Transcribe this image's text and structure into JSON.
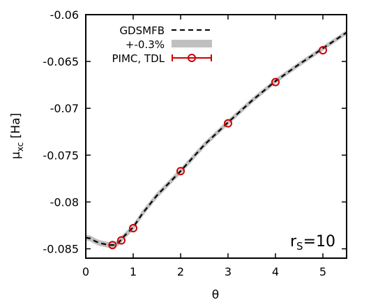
{
  "chart_data": {
    "type": "line",
    "xlabel": "θ",
    "ylabel": {
      "main": "μ",
      "sub": "xc",
      "unit": " [Ha]"
    },
    "xlim": [
      0,
      5.5
    ],
    "ylim": [
      -0.086,
      -0.06
    ],
    "xticks": [
      0,
      1,
      2,
      3,
      4,
      5
    ],
    "xtick_labels": [
      "0",
      "1",
      "2",
      "3",
      "4",
      "5"
    ],
    "yticks": [
      -0.085,
      -0.08,
      -0.075,
      -0.07,
      -0.065,
      -0.06
    ],
    "ytick_labels": [
      "-0.085",
      "-0.08",
      "-0.075",
      "-0.07",
      "-0.065",
      "-0.06"
    ],
    "annotation": {
      "main": "r",
      "sub": "S",
      "rest": "=10"
    },
    "legend_position": "top-left",
    "series": [
      {
        "name": "GDSMFB",
        "style": "dashed",
        "color": "#000000",
        "x": [
          0,
          0.1,
          0.2,
          0.3,
          0.4,
          0.5,
          0.6,
          0.7,
          0.8,
          0.9,
          1.0,
          1.2,
          1.5,
          2.0,
          2.5,
          3.0,
          3.5,
          4.0,
          4.5,
          5.0,
          5.5
        ],
        "y": [
          -0.0838,
          -0.0839,
          -0.0842,
          -0.0844,
          -0.0845,
          -0.0846,
          -0.0846,
          -0.0843,
          -0.0837,
          -0.0832,
          -0.0827,
          -0.0812,
          -0.0793,
          -0.0767,
          -0.0739,
          -0.0715,
          -0.0692,
          -0.0671,
          -0.0653,
          -0.0636,
          -0.0619
        ]
      },
      {
        "name": "+-0.3%",
        "style": "band",
        "color": "#c0c0c0",
        "relative_width": 0.003
      },
      {
        "name": "PIMC, TDL",
        "style": "points-errorbars",
        "color": "#cc0000",
        "x": [
          0.5625,
          0.75,
          1.0,
          2.0,
          3.0,
          4.0,
          5.0
        ],
        "y": [
          -0.0846,
          -0.0841,
          -0.0828,
          -0.0767,
          -0.0716,
          -0.0672,
          -0.0638
        ]
      }
    ]
  }
}
